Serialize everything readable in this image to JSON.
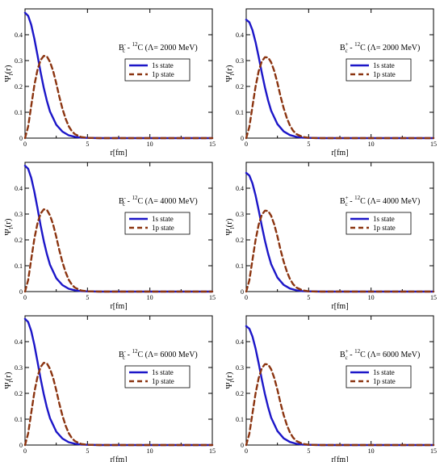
{
  "figure": {
    "line_colors": {
      "s": "#1c16c8",
      "p": "#8b3410"
    }
  },
  "chart_data": [
    {
      "type": "line",
      "annotation": {
        "base": "B",
        "sup": "-",
        "sub": "c",
        "mid": " - ",
        "nuc_sup": "12",
        "tail": "C (Λ= 2000 MeV)"
      },
      "xlabel": "r[fm]",
      "ylabel": {
        "main": "Ψ",
        "sub": "l",
        "rest": "(r)"
      },
      "xlim": [
        0,
        15
      ],
      "ylim": [
        0,
        0.5
      ],
      "xticks": [
        0,
        5,
        10,
        15
      ],
      "yticks": [
        0,
        0.1,
        0.2,
        0.3,
        0.4
      ],
      "ytick_labels": [
        "0",
        "0.1",
        "0.2",
        "0.3",
        "0.4"
      ],
      "grid": false,
      "legend_position": "upper-right",
      "series": [
        {
          "name": "1s state",
          "style": "solid",
          "x": [
            0,
            0.25,
            0.5,
            0.75,
            1.0,
            1.25,
            1.5,
            1.75,
            2.0,
            2.5,
            3.0,
            3.5,
            4.0,
            4.5,
            5.0,
            6.0,
            8.0,
            10.0,
            15.0
          ],
          "y": [
            0.485,
            0.473,
            0.438,
            0.384,
            0.32,
            0.255,
            0.195,
            0.144,
            0.103,
            0.052,
            0.025,
            0.011,
            0.005,
            0.002,
            0.001,
            0.0,
            0.0,
            0.0,
            0.0
          ]
        },
        {
          "name": "1p state",
          "style": "dashed",
          "x": [
            0,
            0.25,
            0.5,
            0.75,
            1.0,
            1.25,
            1.5,
            1.75,
            2.0,
            2.25,
            2.5,
            2.75,
            3.0,
            3.25,
            3.5,
            3.75,
            4.0,
            4.5,
            5.0,
            6.0,
            8.0,
            10.0,
            15.0
          ],
          "y": [
            0.0,
            0.045,
            0.125,
            0.205,
            0.265,
            0.302,
            0.318,
            0.316,
            0.295,
            0.26,
            0.212,
            0.16,
            0.113,
            0.075,
            0.046,
            0.027,
            0.015,
            0.004,
            0.001,
            0.0,
            0.0,
            0.0,
            0.0
          ]
        }
      ]
    },
    {
      "type": "line",
      "annotation": {
        "base": "B",
        "sup": "-",
        "sub": "c",
        "mid": " - ",
        "nuc_sup": "12",
        "tail": "C (Λ= 4000 MeV)"
      },
      "xlabel": "r[fm]",
      "ylabel": {
        "main": "Ψ",
        "sub": "l",
        "rest": "(r)"
      },
      "xlim": [
        0,
        15
      ],
      "ylim": [
        0,
        0.5
      ],
      "xticks": [
        0,
        5,
        10,
        15
      ],
      "yticks": [
        0,
        0.1,
        0.2,
        0.3,
        0.4
      ],
      "ytick_labels": [
        "0",
        "0.1",
        "0.2",
        "0.3",
        "0.4"
      ],
      "grid": false,
      "legend_position": "upper-right",
      "series": [
        {
          "name": "1s state",
          "style": "solid",
          "x": [
            0,
            0.25,
            0.5,
            0.75,
            1.0,
            1.25,
            1.5,
            1.75,
            2.0,
            2.5,
            3.0,
            3.5,
            4.0,
            4.5,
            5.0,
            6.0,
            8.0,
            10.0,
            15.0
          ],
          "y": [
            0.487,
            0.475,
            0.44,
            0.386,
            0.322,
            0.256,
            0.196,
            0.145,
            0.104,
            0.052,
            0.025,
            0.011,
            0.005,
            0.002,
            0.001,
            0.0,
            0.0,
            0.0,
            0.0
          ]
        },
        {
          "name": "1p state",
          "style": "dashed",
          "x": [
            0,
            0.25,
            0.5,
            0.75,
            1.0,
            1.25,
            1.5,
            1.75,
            2.0,
            2.25,
            2.5,
            2.75,
            3.0,
            3.25,
            3.5,
            3.75,
            4.0,
            4.5,
            5.0,
            6.0,
            8.0,
            10.0,
            15.0
          ],
          "y": [
            0.0,
            0.045,
            0.125,
            0.205,
            0.265,
            0.302,
            0.318,
            0.316,
            0.295,
            0.26,
            0.212,
            0.16,
            0.113,
            0.075,
            0.046,
            0.027,
            0.015,
            0.004,
            0.001,
            0.0,
            0.0,
            0.0,
            0.0
          ]
        }
      ]
    },
    {
      "type": "line",
      "annotation": {
        "base": "B",
        "sup": "-",
        "sub": "c",
        "mid": " - ",
        "nuc_sup": "12",
        "tail": "C (Λ= 6000 MeV)"
      },
      "xlabel": "r[fm]",
      "ylabel": {
        "main": "Ψ",
        "sub": "l",
        "rest": "(r)"
      },
      "xlim": [
        0,
        15
      ],
      "ylim": [
        0,
        0.5
      ],
      "xticks": [
        0,
        5,
        10,
        15
      ],
      "yticks": [
        0,
        0.1,
        0.2,
        0.3,
        0.4
      ],
      "ytick_labels": [
        "0",
        "0.1",
        "0.2",
        "0.3",
        "0.4"
      ],
      "grid": false,
      "legend_position": "upper-right",
      "series": [
        {
          "name": "1s state",
          "style": "solid",
          "x": [
            0,
            0.25,
            0.5,
            0.75,
            1.0,
            1.25,
            1.5,
            1.75,
            2.0,
            2.5,
            3.0,
            3.5,
            4.0,
            4.5,
            5.0,
            6.0,
            8.0,
            10.0,
            15.0
          ],
          "y": [
            0.488,
            0.476,
            0.441,
            0.387,
            0.322,
            0.257,
            0.197,
            0.145,
            0.104,
            0.052,
            0.025,
            0.011,
            0.005,
            0.002,
            0.001,
            0.0,
            0.0,
            0.0,
            0.0
          ]
        },
        {
          "name": "1p state",
          "style": "dashed",
          "x": [
            0,
            0.25,
            0.5,
            0.75,
            1.0,
            1.25,
            1.5,
            1.75,
            2.0,
            2.25,
            2.5,
            2.75,
            3.0,
            3.25,
            3.5,
            3.75,
            4.0,
            4.5,
            5.0,
            6.0,
            8.0,
            10.0,
            15.0
          ],
          "y": [
            0.0,
            0.045,
            0.125,
            0.205,
            0.265,
            0.302,
            0.318,
            0.316,
            0.295,
            0.26,
            0.212,
            0.16,
            0.113,
            0.075,
            0.046,
            0.027,
            0.015,
            0.004,
            0.001,
            0.0,
            0.0,
            0.0,
            0.0
          ]
        }
      ]
    },
    {
      "type": "line",
      "annotation": {
        "base": "B",
        "sup": "+",
        "sub": "c",
        "mid": " - ",
        "nuc_sup": "12",
        "tail": "C (Λ= 2000 MeV)"
      },
      "xlabel": "r[fm]",
      "ylabel": {
        "main": "Ψ",
        "sub": "l",
        "rest": "(r)"
      },
      "xlim": [
        0,
        15
      ],
      "ylim": [
        0,
        0.5
      ],
      "xticks": [
        0,
        5,
        10,
        15
      ],
      "yticks": [
        0,
        0.1,
        0.2,
        0.3,
        0.4
      ],
      "ytick_labels": [
        "0",
        "0.1",
        "0.2",
        "0.3",
        "0.4"
      ],
      "grid": false,
      "legend_position": "upper-right",
      "series": [
        {
          "name": "1s state",
          "style": "solid",
          "x": [
            0,
            0.25,
            0.5,
            0.75,
            1.0,
            1.25,
            1.5,
            1.75,
            2.0,
            2.5,
            3.0,
            3.5,
            4.0,
            4.5,
            5.0,
            6.0,
            8.0,
            10.0,
            15.0
          ],
          "y": [
            0.458,
            0.448,
            0.418,
            0.371,
            0.313,
            0.253,
            0.196,
            0.146,
            0.106,
            0.054,
            0.026,
            0.012,
            0.005,
            0.002,
            0.001,
            0.0,
            0.0,
            0.0,
            0.0
          ]
        },
        {
          "name": "1p state",
          "style": "dashed",
          "x": [
            0,
            0.25,
            0.5,
            0.75,
            1.0,
            1.25,
            1.5,
            1.75,
            2.0,
            2.25,
            2.5,
            2.75,
            3.0,
            3.25,
            3.5,
            3.75,
            4.0,
            4.5,
            5.0,
            6.0,
            8.0,
            10.0,
            15.0
          ],
          "y": [
            0.0,
            0.044,
            0.122,
            0.2,
            0.26,
            0.297,
            0.313,
            0.312,
            0.293,
            0.259,
            0.213,
            0.162,
            0.116,
            0.078,
            0.049,
            0.029,
            0.016,
            0.005,
            0.001,
            0.0,
            0.0,
            0.0,
            0.0
          ]
        }
      ]
    },
    {
      "type": "line",
      "annotation": {
        "base": "B",
        "sup": "+",
        "sub": "c",
        "mid": " - ",
        "nuc_sup": "12",
        "tail": "C (Λ= 4000 MeV)"
      },
      "xlabel": "r[fm]",
      "ylabel": {
        "main": "Ψ",
        "sub": "l",
        "rest": "(r)"
      },
      "xlim": [
        0,
        15
      ],
      "ylim": [
        0,
        0.5
      ],
      "xticks": [
        0,
        5,
        10,
        15
      ],
      "yticks": [
        0,
        0.1,
        0.2,
        0.3,
        0.4
      ],
      "ytick_labels": [
        "0",
        "0.1",
        "0.2",
        "0.3",
        "0.4"
      ],
      "grid": false,
      "legend_position": "upper-right",
      "series": [
        {
          "name": "1s state",
          "style": "solid",
          "x": [
            0,
            0.25,
            0.5,
            0.75,
            1.0,
            1.25,
            1.5,
            1.75,
            2.0,
            2.5,
            3.0,
            3.5,
            4.0,
            4.5,
            5.0,
            6.0,
            8.0,
            10.0,
            15.0
          ],
          "y": [
            0.459,
            0.449,
            0.419,
            0.372,
            0.314,
            0.254,
            0.197,
            0.147,
            0.106,
            0.054,
            0.026,
            0.012,
            0.005,
            0.002,
            0.001,
            0.0,
            0.0,
            0.0,
            0.0
          ]
        },
        {
          "name": "1p state",
          "style": "dashed",
          "x": [
            0,
            0.25,
            0.5,
            0.75,
            1.0,
            1.25,
            1.5,
            1.75,
            2.0,
            2.25,
            2.5,
            2.75,
            3.0,
            3.25,
            3.5,
            3.75,
            4.0,
            4.5,
            5.0,
            6.0,
            8.0,
            10.0,
            15.0
          ],
          "y": [
            0.0,
            0.044,
            0.122,
            0.2,
            0.26,
            0.297,
            0.313,
            0.312,
            0.293,
            0.259,
            0.213,
            0.162,
            0.116,
            0.078,
            0.049,
            0.029,
            0.016,
            0.005,
            0.001,
            0.0,
            0.0,
            0.0,
            0.0
          ]
        }
      ]
    },
    {
      "type": "line",
      "annotation": {
        "base": "B",
        "sup": "+",
        "sub": "c",
        "mid": " - ",
        "nuc_sup": "12",
        "tail": "C (Λ= 6000 MeV)"
      },
      "xlabel": "r[fm]",
      "ylabel": {
        "main": "Ψ",
        "sub": "l",
        "rest": "(r)"
      },
      "xlim": [
        0,
        15
      ],
      "ylim": [
        0,
        0.5
      ],
      "xticks": [
        0,
        5,
        10,
        15
      ],
      "yticks": [
        0,
        0.1,
        0.2,
        0.3,
        0.4
      ],
      "ytick_labels": [
        "0",
        "0.1",
        "0.2",
        "0.3",
        "0.4"
      ],
      "grid": false,
      "legend_position": "upper-right",
      "series": [
        {
          "name": "1s state",
          "style": "solid",
          "x": [
            0,
            0.25,
            0.5,
            0.75,
            1.0,
            1.25,
            1.5,
            1.75,
            2.0,
            2.5,
            3.0,
            3.5,
            4.0,
            4.5,
            5.0,
            6.0,
            8.0,
            10.0,
            15.0
          ],
          "y": [
            0.46,
            0.45,
            0.42,
            0.373,
            0.315,
            0.254,
            0.197,
            0.147,
            0.106,
            0.054,
            0.026,
            0.012,
            0.005,
            0.002,
            0.001,
            0.0,
            0.0,
            0.0,
            0.0
          ]
        },
        {
          "name": "1p state",
          "style": "dashed",
          "x": [
            0,
            0.25,
            0.5,
            0.75,
            1.0,
            1.25,
            1.5,
            1.75,
            2.0,
            2.25,
            2.5,
            2.75,
            3.0,
            3.25,
            3.5,
            3.75,
            4.0,
            4.5,
            5.0,
            6.0,
            8.0,
            10.0,
            15.0
          ],
          "y": [
            0.0,
            0.044,
            0.122,
            0.2,
            0.26,
            0.297,
            0.313,
            0.312,
            0.293,
            0.259,
            0.213,
            0.162,
            0.116,
            0.078,
            0.049,
            0.029,
            0.016,
            0.005,
            0.001,
            0.0,
            0.0,
            0.0,
            0.0
          ]
        }
      ]
    }
  ]
}
